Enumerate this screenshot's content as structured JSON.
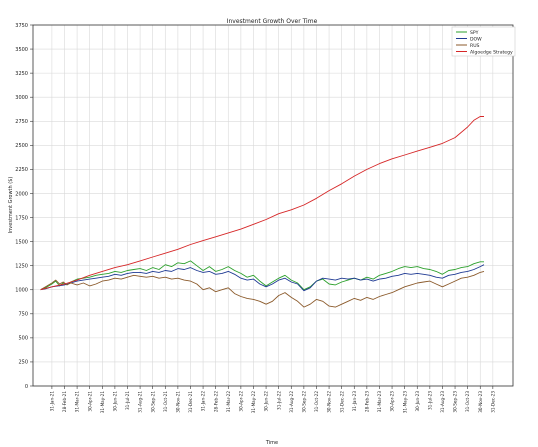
{
  "chart_data": {
    "type": "line",
    "title": "Investment Growth Over Time",
    "xlabel": "Time",
    "ylabel": "Investment Growth ($)",
    "ylim": [
      0,
      3750
    ],
    "yticks": [
      0,
      250,
      500,
      750,
      1000,
      1250,
      1500,
      1750,
      2000,
      2250,
      2500,
      2750,
      3000,
      3250,
      3500,
      3750
    ],
    "grid": true,
    "legend_position": "top-right",
    "x_range": [
      -1.5,
      36.6
    ],
    "x_tick_labels": [
      "31-Jan-21",
      "28-Feb-21",
      "31-Mar-21",
      "30-Apr-21",
      "31-May-21",
      "30-Jun-21",
      "31-Jul-21",
      "31-Aug-21",
      "30-Sep-21",
      "31-Oct-21",
      "30-Nov-21",
      "31-Dec-21",
      "31-Jan-22",
      "28-Feb-22",
      "31-Mar-22",
      "30-Apr-22",
      "31-May-22",
      "30-Jun-22",
      "31-Jul-22",
      "31-Aug-22",
      "30-Sep-22",
      "31-Oct-22",
      "30-Nov-22",
      "31-Dec-22",
      "31-Jan-23",
      "28-Feb-23",
      "31-Mar-23",
      "30-Apr-23",
      "31-May-23",
      "30-Jun-23",
      "31-Jul-23",
      "31-Aug-23",
      "30-Sep-23",
      "31-Oct-23",
      "30-Nov-23",
      "31-Dec-23"
    ],
    "series": [
      {
        "name": "SPY",
        "color": "#2ca02c",
        "points": [
          [
            -0.9,
            1000
          ],
          [
            -0.5,
            1020
          ],
          [
            0,
            1060
          ],
          [
            0.3,
            1090
          ],
          [
            0.6,
            1040
          ],
          [
            0.9,
            1070
          ],
          [
            1.2,
            1050
          ],
          [
            1.5,
            1080
          ],
          [
            2,
            1110
          ],
          [
            2.5,
            1120
          ],
          [
            3,
            1130
          ],
          [
            3.5,
            1150
          ],
          [
            4,
            1160
          ],
          [
            4.5,
            1170
          ],
          [
            5,
            1190
          ],
          [
            5.5,
            1180
          ],
          [
            6,
            1200
          ],
          [
            6.5,
            1210
          ],
          [
            7,
            1220
          ],
          [
            7.5,
            1200
          ],
          [
            8,
            1230
          ],
          [
            8.5,
            1210
          ],
          [
            9,
            1260
          ],
          [
            9.5,
            1240
          ],
          [
            10,
            1280
          ],
          [
            10.5,
            1270
          ],
          [
            11,
            1300
          ],
          [
            11.5,
            1250
          ],
          [
            12,
            1200
          ],
          [
            12.5,
            1240
          ],
          [
            13,
            1190
          ],
          [
            13.5,
            1210
          ],
          [
            14,
            1240
          ],
          [
            14.5,
            1200
          ],
          [
            15,
            1170
          ],
          [
            15.5,
            1130
          ],
          [
            16,
            1150
          ],
          [
            16.5,
            1090
          ],
          [
            17,
            1040
          ],
          [
            17.5,
            1080
          ],
          [
            18,
            1120
          ],
          [
            18.5,
            1150
          ],
          [
            19,
            1100
          ],
          [
            19.5,
            1070
          ],
          [
            20,
            1000
          ],
          [
            20.5,
            1030
          ],
          [
            21,
            1090
          ],
          [
            21.5,
            1110
          ],
          [
            22,
            1060
          ],
          [
            22.5,
            1050
          ],
          [
            23,
            1080
          ],
          [
            23.5,
            1100
          ],
          [
            24,
            1120
          ],
          [
            24.5,
            1100
          ],
          [
            25,
            1130
          ],
          [
            25.5,
            1110
          ],
          [
            26,
            1150
          ],
          [
            26.5,
            1170
          ],
          [
            27,
            1190
          ],
          [
            27.5,
            1220
          ],
          [
            28,
            1240
          ],
          [
            28.5,
            1230
          ],
          [
            29,
            1240
          ],
          [
            29.5,
            1220
          ],
          [
            30,
            1210
          ],
          [
            30.5,
            1190
          ],
          [
            31,
            1160
          ],
          [
            31.5,
            1200
          ],
          [
            32,
            1210
          ],
          [
            32.5,
            1230
          ],
          [
            33,
            1240
          ],
          [
            33.5,
            1270
          ],
          [
            34,
            1290
          ],
          [
            34.3,
            1290
          ]
        ]
      },
      {
        "name": "DOW",
        "color": "#1f3a93",
        "points": [
          [
            -0.9,
            1000
          ],
          [
            -0.5,
            1010
          ],
          [
            0,
            1030
          ],
          [
            0.5,
            1040
          ],
          [
            1,
            1050
          ],
          [
            1.5,
            1070
          ],
          [
            2,
            1090
          ],
          [
            2.5,
            1100
          ],
          [
            3,
            1110
          ],
          [
            3.5,
            1120
          ],
          [
            4,
            1130
          ],
          [
            4.5,
            1140
          ],
          [
            5,
            1160
          ],
          [
            5.5,
            1150
          ],
          [
            6,
            1170
          ],
          [
            6.5,
            1180
          ],
          [
            7,
            1180
          ],
          [
            7.5,
            1170
          ],
          [
            8,
            1190
          ],
          [
            8.5,
            1180
          ],
          [
            9,
            1200
          ],
          [
            9.5,
            1190
          ],
          [
            10,
            1220
          ],
          [
            10.5,
            1210
          ],
          [
            11,
            1230
          ],
          [
            11.5,
            1200
          ],
          [
            12,
            1180
          ],
          [
            12.5,
            1190
          ],
          [
            13,
            1160
          ],
          [
            13.5,
            1170
          ],
          [
            14,
            1190
          ],
          [
            14.5,
            1160
          ],
          [
            15,
            1120
          ],
          [
            15.5,
            1100
          ],
          [
            16,
            1110
          ],
          [
            16.5,
            1060
          ],
          [
            17,
            1030
          ],
          [
            17.5,
            1060
          ],
          [
            18,
            1100
          ],
          [
            18.5,
            1120
          ],
          [
            19,
            1080
          ],
          [
            19.5,
            1060
          ],
          [
            20,
            990
          ],
          [
            20.5,
            1020
          ],
          [
            21,
            1090
          ],
          [
            21.5,
            1120
          ],
          [
            22,
            1110
          ],
          [
            22.5,
            1100
          ],
          [
            23,
            1120
          ],
          [
            23.5,
            1110
          ],
          [
            24,
            1120
          ],
          [
            24.5,
            1100
          ],
          [
            25,
            1110
          ],
          [
            25.5,
            1090
          ],
          [
            26,
            1110
          ],
          [
            26.5,
            1120
          ],
          [
            27,
            1140
          ],
          [
            27.5,
            1150
          ],
          [
            28,
            1170
          ],
          [
            28.5,
            1160
          ],
          [
            29,
            1170
          ],
          [
            29.5,
            1160
          ],
          [
            30,
            1150
          ],
          [
            30.5,
            1130
          ],
          [
            31,
            1120
          ],
          [
            31.5,
            1150
          ],
          [
            32,
            1160
          ],
          [
            32.5,
            1180
          ],
          [
            33,
            1190
          ],
          [
            33.5,
            1210
          ],
          [
            34,
            1240
          ],
          [
            34.3,
            1260
          ]
        ]
      },
      {
        "name": "RUS",
        "color": "#8b5a2b",
        "points": [
          [
            -0.9,
            1000
          ],
          [
            -0.5,
            1030
          ],
          [
            0,
            1070
          ],
          [
            0.3,
            1100
          ],
          [
            0.6,
            1060
          ],
          [
            0.9,
            1080
          ],
          [
            1.2,
            1050
          ],
          [
            1.5,
            1070
          ],
          [
            2,
            1050
          ],
          [
            2.5,
            1070
          ],
          [
            3,
            1040
          ],
          [
            3.5,
            1060
          ],
          [
            4,
            1090
          ],
          [
            4.5,
            1100
          ],
          [
            5,
            1120
          ],
          [
            5.5,
            1110
          ],
          [
            6,
            1130
          ],
          [
            6.5,
            1150
          ],
          [
            7,
            1140
          ],
          [
            7.5,
            1130
          ],
          [
            8,
            1140
          ],
          [
            8.5,
            1120
          ],
          [
            9,
            1130
          ],
          [
            9.5,
            1110
          ],
          [
            10,
            1120
          ],
          [
            10.5,
            1100
          ],
          [
            11,
            1090
          ],
          [
            11.5,
            1060
          ],
          [
            12,
            1000
          ],
          [
            12.5,
            1020
          ],
          [
            13,
            980
          ],
          [
            13.5,
            1000
          ],
          [
            14,
            1020
          ],
          [
            14.5,
            960
          ],
          [
            15,
            930
          ],
          [
            15.5,
            910
          ],
          [
            16,
            900
          ],
          [
            16.5,
            880
          ],
          [
            17,
            850
          ],
          [
            17.5,
            880
          ],
          [
            18,
            940
          ],
          [
            18.5,
            970
          ],
          [
            19,
            920
          ],
          [
            19.5,
            880
          ],
          [
            20,
            820
          ],
          [
            20.5,
            850
          ],
          [
            21,
            900
          ],
          [
            21.5,
            880
          ],
          [
            22,
            830
          ],
          [
            22.5,
            820
          ],
          [
            23,
            850
          ],
          [
            23.5,
            880
          ],
          [
            24,
            910
          ],
          [
            24.5,
            890
          ],
          [
            25,
            920
          ],
          [
            25.5,
            900
          ],
          [
            26,
            930
          ],
          [
            26.5,
            950
          ],
          [
            27,
            970
          ],
          [
            27.5,
            1000
          ],
          [
            28,
            1030
          ],
          [
            28.5,
            1050
          ],
          [
            29,
            1070
          ],
          [
            29.5,
            1080
          ],
          [
            30,
            1090
          ],
          [
            30.5,
            1060
          ],
          [
            31,
            1030
          ],
          [
            31.5,
            1060
          ],
          [
            32,
            1090
          ],
          [
            32.5,
            1120
          ],
          [
            33,
            1130
          ],
          [
            33.5,
            1150
          ],
          [
            34,
            1180
          ],
          [
            34.3,
            1190
          ]
        ]
      },
      {
        "name": "Algoedge Strategy",
        "color": "#d62728",
        "points": [
          [
            -0.9,
            1000
          ],
          [
            0,
            1030
          ],
          [
            1,
            1060
          ],
          [
            2,
            1100
          ],
          [
            3,
            1150
          ],
          [
            4,
            1190
          ],
          [
            5,
            1230
          ],
          [
            6,
            1260
          ],
          [
            7,
            1300
          ],
          [
            8,
            1340
          ],
          [
            9,
            1380
          ],
          [
            10,
            1420
          ],
          [
            11,
            1470
          ],
          [
            12,
            1510
          ],
          [
            13,
            1550
          ],
          [
            14,
            1590
          ],
          [
            15,
            1630
          ],
          [
            16,
            1680
          ],
          [
            17,
            1730
          ],
          [
            18,
            1790
          ],
          [
            19,
            1830
          ],
          [
            20,
            1880
          ],
          [
            21,
            1950
          ],
          [
            22,
            2030
          ],
          [
            23,
            2100
          ],
          [
            24,
            2180
          ],
          [
            25,
            2250
          ],
          [
            26,
            2310
          ],
          [
            27,
            2360
          ],
          [
            28,
            2400
          ],
          [
            29,
            2440
          ],
          [
            30,
            2480
          ],
          [
            31,
            2520
          ],
          [
            32,
            2580
          ],
          [
            33,
            2690
          ],
          [
            33.5,
            2760
          ],
          [
            34,
            2800
          ],
          [
            34.3,
            2800
          ]
        ]
      }
    ]
  }
}
